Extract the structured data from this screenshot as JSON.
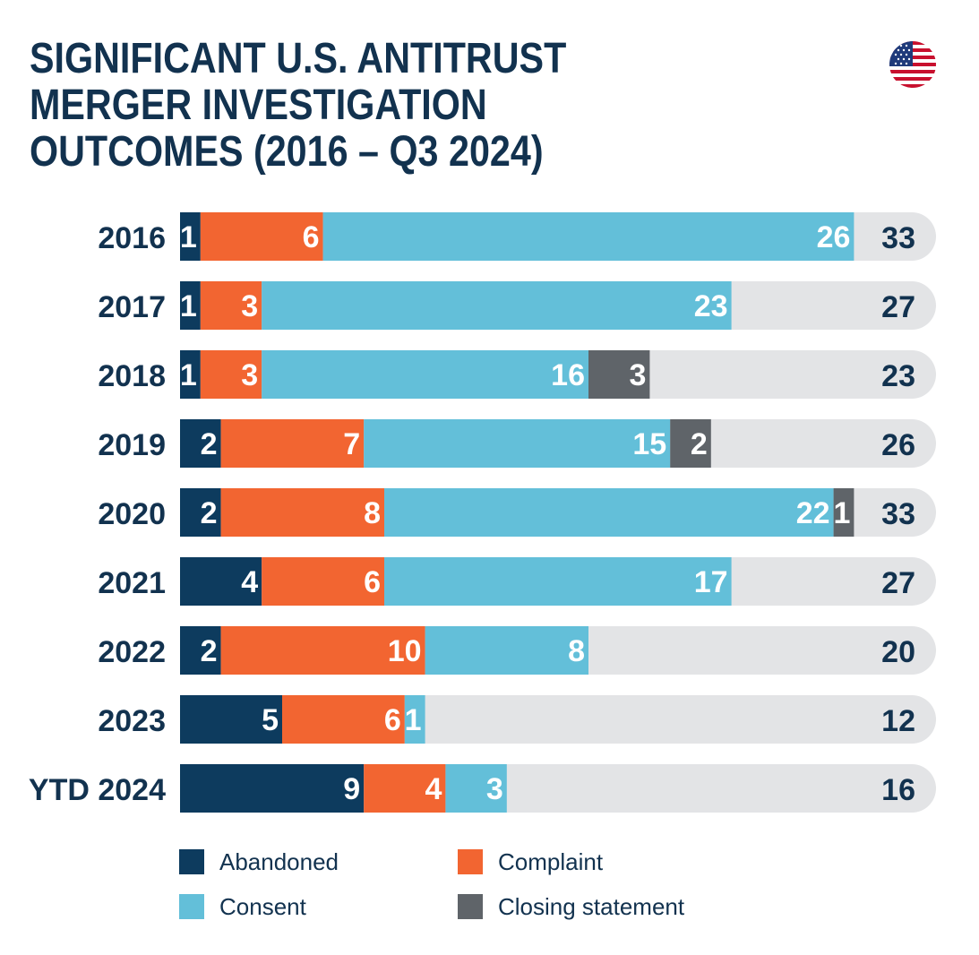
{
  "title": {
    "line1": "SIGNIFICANT U.S. ANTITRUST",
    "line2": "MERGER INVESTIGATION",
    "line3": "OUTCOMES (2016 – Q3 2024)"
  },
  "flag_icon": "us-flag-icon",
  "colors": {
    "Abandoned": "#0d3b5e",
    "Complaint": "#f26531",
    "Consent": "#63bfd9",
    "Closing statement": "#5f6469",
    "track": "#e3e4e6",
    "text_dark": "#12324f",
    "text_light": "#ffffff"
  },
  "chart_data": {
    "type": "bar",
    "orientation": "horizontal",
    "stacked": true,
    "categories": [
      "2016",
      "2017",
      "2018",
      "2019",
      "2020",
      "2021",
      "2022",
      "2023",
      "YTD 2024"
    ],
    "series": [
      {
        "name": "Abandoned",
        "values": [
          1,
          1,
          1,
          2,
          2,
          4,
          2,
          5,
          9
        ]
      },
      {
        "name": "Complaint",
        "values": [
          6,
          3,
          3,
          7,
          8,
          6,
          10,
          6,
          4
        ]
      },
      {
        "name": "Consent",
        "values": [
          26,
          23,
          16,
          15,
          22,
          17,
          8,
          1,
          3
        ]
      },
      {
        "name": "Closing statement",
        "values": [
          0,
          0,
          3,
          2,
          1,
          0,
          0,
          0,
          0
        ]
      }
    ],
    "totals": [
      33,
      27,
      23,
      26,
      33,
      27,
      20,
      12,
      16
    ],
    "xlim": [
      0,
      37
    ],
    "legend_placement": "bottom",
    "grid": false
  },
  "legend": [
    {
      "label": "Abandoned",
      "color": "#0d3b5e"
    },
    {
      "label": "Complaint",
      "color": "#f26531"
    },
    {
      "label": "Consent",
      "color": "#63bfd9"
    },
    {
      "label": "Closing statement",
      "color": "#5f6469"
    }
  ]
}
